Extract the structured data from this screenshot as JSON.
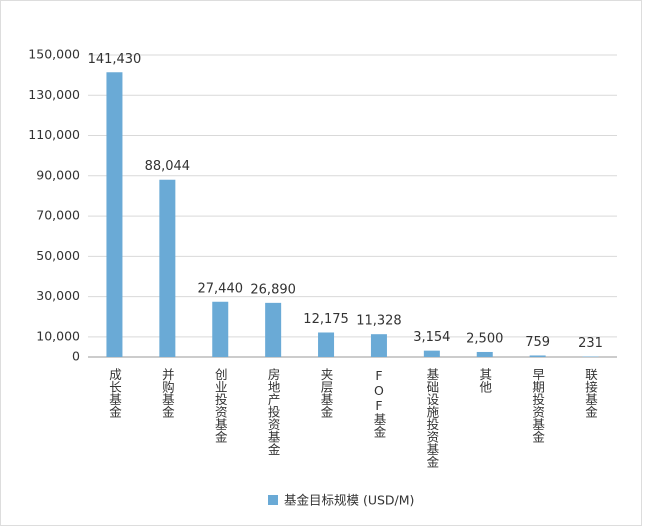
{
  "chart_data": {
    "type": "bar",
    "categories": [
      "成长基金",
      "并购基金",
      "创业投资基金",
      "房地产投资基金",
      "夹层基金",
      "FOF基金",
      "基础设施投资基金",
      "其他",
      "早期投资基金",
      "联接基金"
    ],
    "series": [
      {
        "name": "基金目标规模 (USD/M)",
        "color": "#6aaad6",
        "values": [
          141430,
          88044,
          27440,
          26890,
          12175,
          11328,
          3154,
          2500,
          759,
          231
        ],
        "value_labels": [
          "141,430",
          "88,044",
          "27,440",
          "26,890",
          "12,175",
          "11,328",
          "3,154",
          "2,500",
          "759",
          "231"
        ]
      }
    ],
    "ylim": [
      0,
      150000
    ],
    "yticks": [
      0,
      {
        "value": 10000,
        "label": "10,000"
      },
      {
        "value": 30000,
        "label": "30,000"
      },
      {
        "value": 50000,
        "label": "50,000"
      },
      {
        "value": 70000,
        "label": "70,000"
      },
      {
        "value": 90000,
        "label": "90,000"
      },
      {
        "value": 110000,
        "label": "110,000"
      },
      {
        "value": 130000,
        "label": "130,000"
      },
      {
        "value": 150000,
        "label": "150,000"
      }
    ],
    "grid": true,
    "legend": "bottom"
  }
}
